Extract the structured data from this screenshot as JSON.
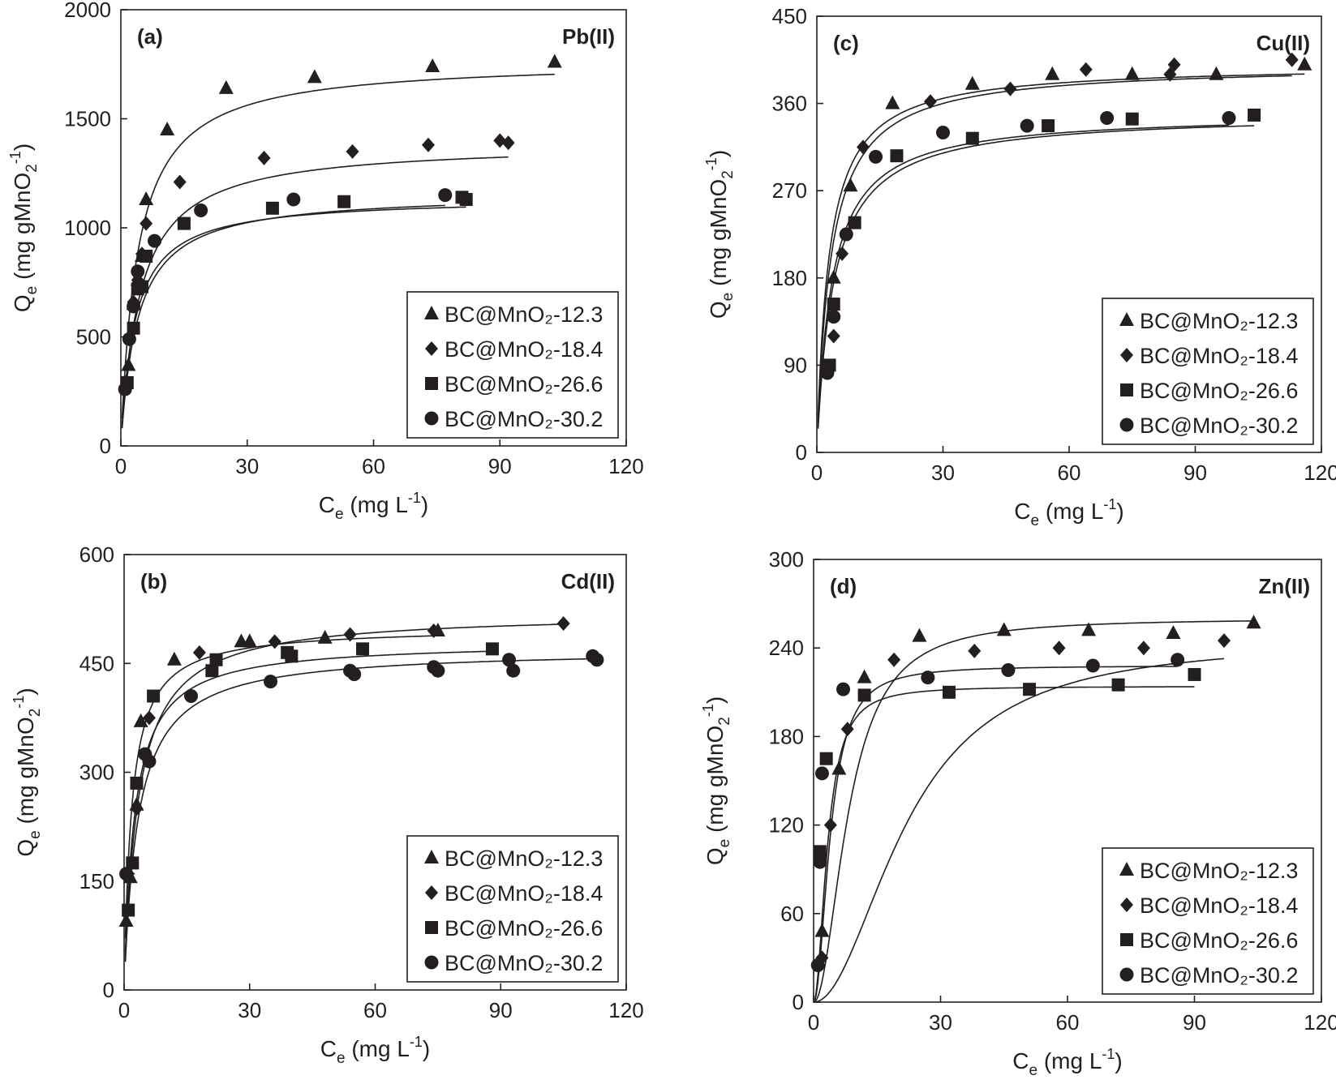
{
  "chart_data": [
    {
      "type": "scatter",
      "panel": "(a)",
      "metal": "Pb(II)",
      "xlabel": {
        "main": "C",
        "sub": "e",
        "unit": " (mg L",
        "sup": "-1",
        "end": ")"
      },
      "ylabel": {
        "main": "Q",
        "sub": "e",
        "unit": " (mg gMnO",
        "sub2": "2",
        "sup": "-1",
        "end": ")"
      },
      "xlim": [
        0,
        120
      ],
      "ylim": [
        0,
        2000
      ],
      "xticks": [
        0,
        30,
        60,
        90,
        120
      ],
      "yticks": [
        0,
        500,
        1000,
        1500,
        2000
      ],
      "legend_position": "bottom-right",
      "series": [
        {
          "name": "BC@MnO₂-12.3",
          "marker": "triangle",
          "points": [
            [
              1.2,
              290
            ],
            [
              1.8,
              370
            ],
            [
              3,
              650
            ],
            [
              4,
              760
            ],
            [
              5,
              870
            ],
            [
              6,
              1130
            ],
            [
              11,
              1450
            ],
            [
              25,
              1640
            ],
            [
              46,
              1690
            ],
            [
              74,
              1740
            ],
            [
              103,
              1760
            ]
          ],
          "fit": {
            "qm": 1770,
            "k": 0.25
          }
        },
        {
          "name": "BC@MnO₂-18.4",
          "marker": "diamond",
          "points": [
            [
              1.3,
              270
            ],
            [
              2,
              490
            ],
            [
              3,
              660
            ],
            [
              4,
              760
            ],
            [
              5,
              880
            ],
            [
              6,
              1020
            ],
            [
              14,
              1210
            ],
            [
              34,
              1320
            ],
            [
              55,
              1350
            ],
            [
              73,
              1380
            ],
            [
              90,
              1400
            ],
            [
              92,
              1390
            ]
          ],
          "fit": {
            "qm": 1390,
            "k": 0.22
          }
        },
        {
          "name": "BC@MnO₂-26.6",
          "marker": "square",
          "points": [
            [
              1.5,
              290
            ],
            [
              3,
              540
            ],
            [
              4,
              720
            ],
            [
              5,
              730
            ],
            [
              6,
              870
            ],
            [
              15,
              1020
            ],
            [
              36,
              1090
            ],
            [
              53,
              1120
            ],
            [
              81,
              1140
            ],
            [
              82,
              1130
            ]
          ],
          "fit": {
            "qm": 1140,
            "k": 0.3
          }
        },
        {
          "name": "BC@MnO₂-30.2",
          "marker": "circle",
          "points": [
            [
              1,
              260
            ],
            [
              2,
              490
            ],
            [
              3,
              640
            ],
            [
              4,
              800
            ],
            [
              8,
              940
            ],
            [
              19,
              1080
            ],
            [
              41,
              1130
            ],
            [
              77,
              1150
            ]
          ],
          "fit": {
            "qm": 1160,
            "k": 0.25
          }
        }
      ]
    },
    {
      "type": "scatter",
      "panel": "(b)",
      "metal": "Cd(II)",
      "xlabel": {
        "main": "C",
        "sub": "e",
        "unit": " (mg L",
        "sup": "-1",
        "end": ")"
      },
      "ylabel": {
        "main": "Q",
        "sub": "e",
        "unit": " (mg gMnO",
        "sub2": "2",
        "sup": "-1",
        "end": ")"
      },
      "xlim": [
        0,
        120
      ],
      "ylim": [
        0,
        600
      ],
      "xticks": [
        0,
        30,
        60,
        90,
        120
      ],
      "yticks": [
        0,
        150,
        300,
        450,
        600
      ],
      "legend_position": "bottom-right",
      "series": [
        {
          "name": "BC@MnO₂-12.3",
          "marker": "triangle",
          "points": [
            [
              0.5,
              95
            ],
            [
              1.5,
              155
            ],
            [
              3,
              255
            ],
            [
              4,
              370
            ],
            [
              12,
              455
            ],
            [
              28,
              480
            ],
            [
              30,
              480
            ],
            [
              48,
              485
            ],
            [
              75,
              495
            ]
          ],
          "fit": {
            "qm": 500,
            "k": 0.55
          }
        },
        {
          "name": "BC@MnO₂-18.4",
          "marker": "diamond",
          "points": [
            [
              1,
              160
            ],
            [
              3,
              250
            ],
            [
              6,
              375
            ],
            [
              18,
              465
            ],
            [
              36,
              480
            ],
            [
              54,
              490
            ],
            [
              74,
              495
            ],
            [
              105,
              505
            ]
          ],
          "fit": {
            "qm": 520,
            "k": 0.3
          }
        },
        {
          "name": "BC@MnO₂-26.6",
          "marker": "square",
          "points": [
            [
              1,
              110
            ],
            [
              2,
              175
            ],
            [
              3,
              285
            ],
            [
              7,
              405
            ],
            [
              21,
              440
            ],
            [
              22,
              455
            ],
            [
              39,
              465
            ],
            [
              40,
              460
            ],
            [
              57,
              470
            ],
            [
              88,
              470
            ]
          ],
          "fit": {
            "qm": 480,
            "k": 0.4
          }
        },
        {
          "name": "BC@MnO₂-30.2",
          "marker": "circle",
          "points": [
            [
              0.5,
              160
            ],
            [
              5,
              325
            ],
            [
              6,
              315
            ],
            [
              16,
              405
            ],
            [
              35,
              425
            ],
            [
              54,
              440
            ],
            [
              55,
              435
            ],
            [
              74,
              445
            ],
            [
              75,
              440
            ],
            [
              92,
              455
            ],
            [
              93,
              440
            ],
            [
              112,
              460
            ],
            [
              113,
              455
            ]
          ],
          "fit": {
            "qm": 470,
            "k": 0.3
          }
        }
      ]
    },
    {
      "type": "scatter",
      "panel": "(c)",
      "metal": "Cu(II)",
      "xlabel": {
        "main": "C",
        "sub": "e",
        "unit": " (mg L",
        "sup": "-1",
        "end": ")"
      },
      "ylabel": {
        "main": "Q",
        "sub": "e",
        "unit": " (mg gMnO",
        "sub2": "2",
        "sup": "-1",
        "end": ")"
      },
      "xlim": [
        0,
        120
      ],
      "ylim": [
        0,
        450
      ],
      "xticks": [
        0,
        30,
        60,
        90,
        120
      ],
      "yticks": [
        0,
        90,
        180,
        270,
        360,
        450
      ],
      "legend_position": "bottom-right",
      "series": [
        {
          "name": "BC@MnO₂-12.3",
          "marker": "triangle",
          "points": [
            [
              4,
              180
            ],
            [
              8,
              275
            ],
            [
              18,
              360
            ],
            [
              37,
              380
            ],
            [
              56,
              390
            ],
            [
              75,
              390
            ],
            [
              95,
              390
            ],
            [
              116,
              400
            ]
          ],
          "fit": {
            "qm": 400,
            "k": 0.35
          }
        },
        {
          "name": "BC@MnO₂-18.4",
          "marker": "diamond",
          "points": [
            [
              4,
              120
            ],
            [
              6,
              205
            ],
            [
              11,
              315
            ],
            [
              27,
              362
            ],
            [
              46,
              375
            ],
            [
              64,
              395
            ],
            [
              84,
              390
            ],
            [
              85,
              400
            ],
            [
              113,
              405
            ]
          ],
          "fit": {
            "qm": 400,
            "k": 0.3
          }
        },
        {
          "name": "BC@MnO₂-26.6",
          "marker": "square",
          "points": [
            [
              3,
              90
            ],
            [
              4,
              153
            ],
            [
              9,
              237
            ],
            [
              19,
              306
            ],
            [
              37,
              324
            ],
            [
              55,
              337
            ],
            [
              75,
              344
            ],
            [
              104,
              348
            ]
          ],
          "fit": {
            "qm": 350,
            "k": 0.25
          }
        },
        {
          "name": "BC@MnO₂-30.2",
          "marker": "circle",
          "points": [
            [
              2.5,
              82
            ],
            [
              4,
              140
            ],
            [
              7,
              225
            ],
            [
              14,
              305
            ],
            [
              30,
              330
            ],
            [
              50,
              337
            ],
            [
              69,
              345
            ],
            [
              98,
              345
            ]
          ],
          "fit": {
            "qm": 350,
            "k": 0.28
          }
        }
      ]
    },
    {
      "type": "scatter",
      "panel": "(d)",
      "metal": "Zn(II)",
      "xlabel": {
        "main": "C",
        "sub": "e",
        "unit": " (mg L",
        "sup": "-1",
        "end": ")"
      },
      "ylabel": {
        "main": "Q",
        "sub": "e",
        "unit": " (mg gMnO",
        "sub2": "2",
        "sup": "-1",
        "end": ")"
      },
      "xlim": [
        0,
        120
      ],
      "ylim": [
        0,
        300
      ],
      "xticks": [
        0,
        30,
        60,
        90,
        120
      ],
      "yticks": [
        0,
        60,
        120,
        180,
        240,
        300
      ],
      "legend_position": "bottom-right",
      "series": [
        {
          "name": "BC@MnO₂-12.3",
          "marker": "triangle",
          "points": [
            [
              2,
              48
            ],
            [
              6,
              158
            ],
            [
              12,
              220
            ],
            [
              25,
              248
            ],
            [
              45,
              252
            ],
            [
              65,
              252
            ],
            [
              85,
              250
            ],
            [
              104,
              257
            ]
          ],
          "fit": {
            "qm": 260,
            "k": 0.12,
            "n": 2
          }
        },
        {
          "name": "BC@MnO₂-18.4",
          "marker": "diamond",
          "points": [
            [
              2,
              30
            ],
            [
              4,
              120
            ],
            [
              8,
              185
            ],
            [
              19,
              232
            ],
            [
              38,
              238
            ],
            [
              58,
              240
            ],
            [
              78,
              240
            ],
            [
              97,
              245
            ]
          ],
          "fit": {
            "qm": 245,
            "k": 0.045,
            "n": 2
          }
        },
        {
          "name": "BC@MnO₂-26.6",
          "marker": "square",
          "points": [
            [
              1.5,
              102
            ],
            [
              3,
              165
            ],
            [
              12,
              208
            ],
            [
              32,
              210
            ],
            [
              51,
              212
            ],
            [
              72,
              215
            ],
            [
              90,
              222
            ]
          ],
          "fit": {
            "qm": 214,
            "k": 0.3,
            "n": 2
          }
        },
        {
          "name": "BC@MnO₂-30.2",
          "marker": "circle",
          "points": [
            [
              1,
              25
            ],
            [
              1.5,
              95
            ],
            [
              2,
              155
            ],
            [
              7,
              212
            ],
            [
              27,
              220
            ],
            [
              46,
              225
            ],
            [
              66,
              228
            ],
            [
              86,
              232
            ]
          ],
          "fit": {
            "qm": 228,
            "k": 0.25,
            "n": 2
          }
        }
      ]
    }
  ]
}
